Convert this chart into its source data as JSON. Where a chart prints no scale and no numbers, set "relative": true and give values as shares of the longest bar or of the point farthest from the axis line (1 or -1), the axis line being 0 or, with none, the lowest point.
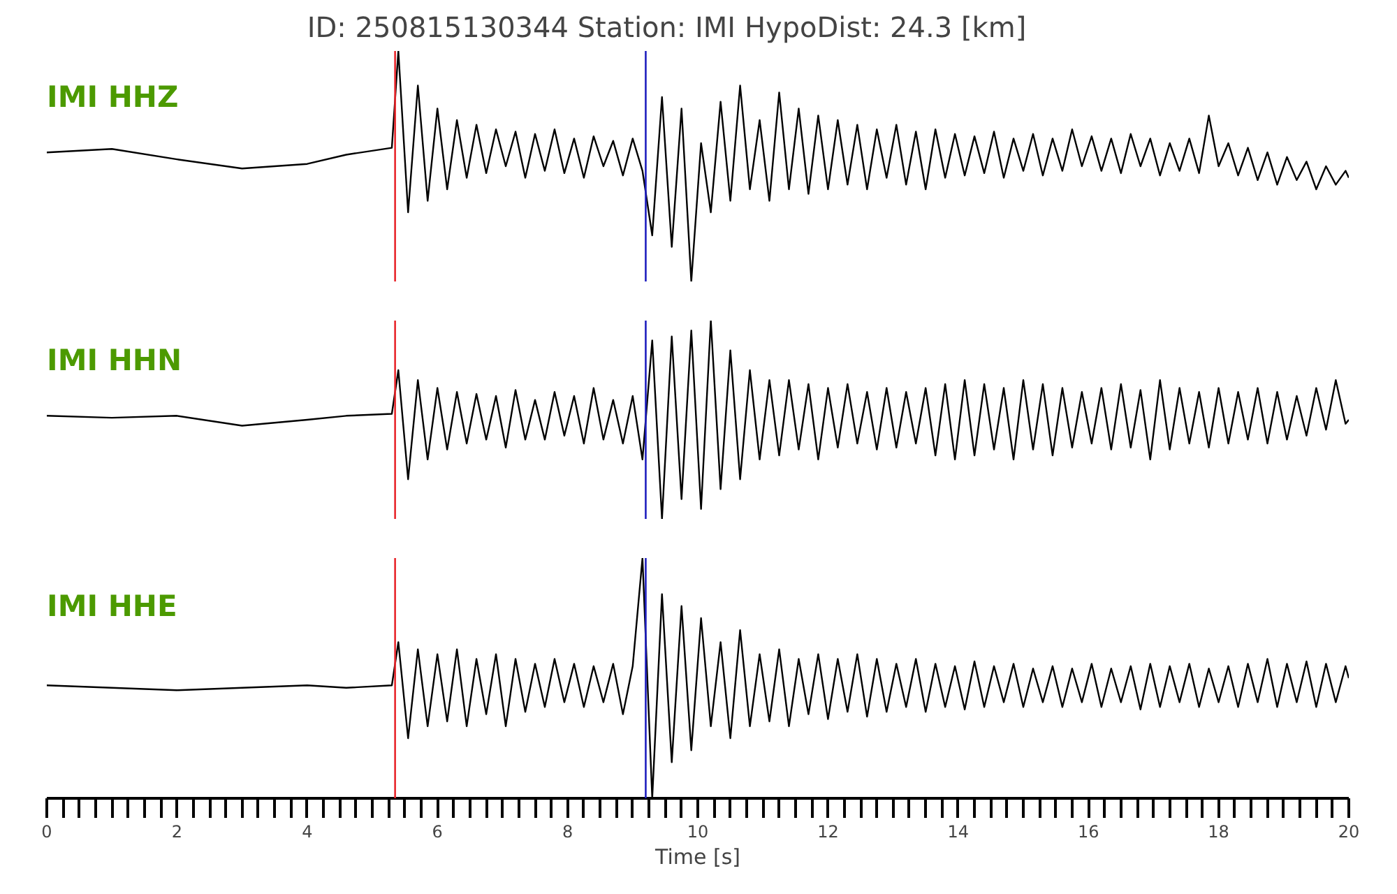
{
  "chart_data": [
    {
      "type": "line",
      "title": "ID: 250815130344   Station: IMI   HypoDist:    24.3 [km]",
      "relative": true,
      "xlim": [
        0,
        20
      ],
      "tick_labels": false,
      "x": [
        0,
        1,
        2,
        3,
        4,
        4.6,
        5.3,
        5.4,
        5.55,
        5.7,
        5.85,
        6,
        6.15,
        6.3,
        6.45,
        6.6,
        6.75,
        6.9,
        7.05,
        7.2,
        7.35,
        7.5,
        7.65,
        7.8,
        7.95,
        8.1,
        8.25,
        8.4,
        8.55,
        8.7,
        8.85,
        9,
        9.15,
        9.3,
        9.45,
        9.6,
        9.75,
        9.9,
        10.05,
        10.2,
        10.35,
        10.5,
        10.65,
        10.8,
        10.95,
        11.1,
        11.25,
        11.4,
        11.55,
        11.7,
        11.85,
        12,
        12.15,
        12.3,
        12.45,
        12.6,
        12.75,
        12.9,
        13.05,
        13.2,
        13.35,
        13.5,
        13.65,
        13.8,
        13.95,
        14.1,
        14.25,
        14.4,
        14.55,
        14.7,
        14.85,
        15,
        15.15,
        15.3,
        15.45,
        15.6,
        15.75,
        15.9,
        16.05,
        16.2,
        16.35,
        16.5,
        16.65,
        16.8,
        16.95,
        17.1,
        17.25,
        17.4,
        17.55,
        17.7,
        17.85,
        18,
        18.15,
        18.3,
        18.45,
        18.6,
        18.75,
        18.9,
        19.05,
        19.2,
        19.35,
        19.5,
        19.65,
        19.8,
        19.95,
        20
      ],
      "series": [
        {
          "name": "IMI HHZ",
          "color": "#000000",
          "values": [
            0.56,
            0.575,
            0.53,
            0.49,
            0.51,
            0.55,
            0.58,
            1.0,
            0.3,
            0.85,
            0.35,
            0.75,
            0.4,
            0.7,
            0.45,
            0.68,
            0.47,
            0.66,
            0.5,
            0.65,
            0.45,
            0.64,
            0.48,
            0.66,
            0.47,
            0.62,
            0.45,
            0.63,
            0.5,
            0.61,
            0.46,
            0.62,
            0.48,
            0.2,
            0.8,
            0.15,
            0.75,
            0.0,
            0.6,
            0.3,
            0.78,
            0.35,
            0.85,
            0.4,
            0.7,
            0.35,
            0.82,
            0.4,
            0.75,
            0.38,
            0.72,
            0.4,
            0.7,
            0.42,
            0.68,
            0.4,
            0.66,
            0.45,
            0.68,
            0.42,
            0.65,
            0.4,
            0.66,
            0.45,
            0.64,
            0.46,
            0.63,
            0.47,
            0.65,
            0.45,
            0.62,
            0.48,
            0.64,
            0.46,
            0.62,
            0.48,
            0.66,
            0.5,
            0.63,
            0.48,
            0.62,
            0.47,
            0.64,
            0.5,
            0.62,
            0.46,
            0.6,
            0.48,
            0.62,
            0.47,
            0.72,
            0.5,
            0.6,
            0.46,
            0.58,
            0.44,
            0.56,
            0.42,
            0.54,
            0.44,
            0.52,
            0.4,
            0.5,
            0.42,
            0.48,
            0.45
          ]
        }
      ],
      "ref_lines": [
        {
          "axis": "x",
          "value": 5.35,
          "color": "#e8262b"
        },
        {
          "axis": "x",
          "value": 9.2,
          "color": "#1f1fbf"
        }
      ]
    },
    {
      "type": "line",
      "relative": true,
      "xlim": [
        0,
        20
      ],
      "tick_labels": false,
      "x": [
        0,
        1,
        2,
        3,
        4,
        4.6,
        5.3,
        5.4,
        5.55,
        5.7,
        5.85,
        6,
        6.15,
        6.3,
        6.45,
        6.6,
        6.75,
        6.9,
        7.05,
        7.2,
        7.35,
        7.5,
        7.65,
        7.8,
        7.95,
        8.1,
        8.25,
        8.4,
        8.55,
        8.7,
        8.85,
        9,
        9.15,
        9.3,
        9.45,
        9.6,
        9.75,
        9.9,
        10.05,
        10.2,
        10.35,
        10.5,
        10.65,
        10.8,
        10.95,
        11.1,
        11.25,
        11.4,
        11.55,
        11.7,
        11.85,
        12,
        12.15,
        12.3,
        12.45,
        12.6,
        12.75,
        12.9,
        13.05,
        13.2,
        13.35,
        13.5,
        13.65,
        13.8,
        13.95,
        14.1,
        14.25,
        14.4,
        14.55,
        14.7,
        14.85,
        15,
        15.15,
        15.3,
        15.45,
        15.6,
        15.75,
        15.9,
        16.05,
        16.2,
        16.35,
        16.5,
        16.65,
        16.8,
        16.95,
        17.1,
        17.25,
        17.4,
        17.55,
        17.7,
        17.85,
        18,
        18.15,
        18.3,
        18.45,
        18.6,
        18.75,
        18.9,
        19.05,
        19.2,
        19.35,
        19.5,
        19.65,
        19.8,
        19.95,
        20
      ],
      "series": [
        {
          "name": "IMI HHN",
          "color": "#000000",
          "values": [
            0.52,
            0.51,
            0.52,
            0.47,
            0.5,
            0.52,
            0.53,
            0.75,
            0.2,
            0.7,
            0.3,
            0.66,
            0.35,
            0.64,
            0.38,
            0.63,
            0.4,
            0.62,
            0.36,
            0.65,
            0.4,
            0.6,
            0.4,
            0.64,
            0.42,
            0.62,
            0.38,
            0.66,
            0.4,
            0.6,
            0.38,
            0.62,
            0.3,
            0.9,
            0.0,
            0.92,
            0.1,
            0.95,
            0.05,
            1.0,
            0.15,
            0.85,
            0.2,
            0.75,
            0.3,
            0.7,
            0.32,
            0.7,
            0.35,
            0.68,
            0.3,
            0.66,
            0.36,
            0.68,
            0.38,
            0.64,
            0.35,
            0.66,
            0.36,
            0.64,
            0.38,
            0.66,
            0.32,
            0.68,
            0.3,
            0.7,
            0.32,
            0.68,
            0.35,
            0.66,
            0.3,
            0.7,
            0.35,
            0.68,
            0.32,
            0.66,
            0.36,
            0.64,
            0.38,
            0.66,
            0.35,
            0.68,
            0.36,
            0.65,
            0.3,
            0.7,
            0.35,
            0.66,
            0.38,
            0.64,
            0.36,
            0.66,
            0.38,
            0.64,
            0.4,
            0.66,
            0.38,
            0.64,
            0.4,
            0.62,
            0.42,
            0.66,
            0.45,
            0.7,
            0.48,
            0.5
          ]
        }
      ],
      "ref_lines": [
        {
          "axis": "x",
          "value": 5.35,
          "color": "#e8262b"
        },
        {
          "axis": "x",
          "value": 9.2,
          "color": "#1f1fbf"
        }
      ]
    },
    {
      "type": "line",
      "relative": true,
      "xlim": [
        0,
        20
      ],
      "tick_labels": "x",
      "xlabel": "Time [s]",
      "xticks": [
        0,
        {
          "value": 0.25,
          "label": null
        },
        {
          "value": 0.5,
          "label": null
        },
        {
          "value": 0.75,
          "label": null
        },
        {
          "value": 1,
          "label": null
        },
        {
          "value": 1.25,
          "label": null
        },
        {
          "value": 1.5,
          "label": null
        },
        {
          "value": 1.75,
          "label": null
        },
        2,
        {
          "value": 2.25,
          "label": null
        },
        {
          "value": 2.5,
          "label": null
        },
        {
          "value": 2.75,
          "label": null
        },
        {
          "value": 3,
          "label": null
        },
        {
          "value": 3.25,
          "label": null
        },
        {
          "value": 3.5,
          "label": null
        },
        {
          "value": 3.75,
          "label": null
        },
        4,
        {
          "value": 4.25,
          "label": null
        },
        {
          "value": 4.5,
          "label": null
        },
        {
          "value": 4.75,
          "label": null
        },
        {
          "value": 5,
          "label": null
        },
        {
          "value": 5.25,
          "label": null
        },
        {
          "value": 5.5,
          "label": null
        },
        {
          "value": 5.75,
          "label": null
        },
        6,
        {
          "value": 6.25,
          "label": null
        },
        {
          "value": 6.5,
          "label": null
        },
        {
          "value": 6.75,
          "label": null
        },
        {
          "value": 7,
          "label": null
        },
        {
          "value": 7.25,
          "label": null
        },
        {
          "value": 7.5,
          "label": null
        },
        {
          "value": 7.75,
          "label": null
        },
        8,
        {
          "value": 8.25,
          "label": null
        },
        {
          "value": 8.5,
          "label": null
        },
        {
          "value": 8.75,
          "label": null
        },
        {
          "value": 9,
          "label": null
        },
        {
          "value": 9.25,
          "label": null
        },
        {
          "value": 9.5,
          "label": null
        },
        {
          "value": 9.75,
          "label": null
        },
        10,
        {
          "value": 10.25,
          "label": null
        },
        {
          "value": 10.5,
          "label": null
        },
        {
          "value": 10.75,
          "label": null
        },
        {
          "value": 11,
          "label": null
        },
        {
          "value": 11.25,
          "label": null
        },
        {
          "value": 11.5,
          "label": null
        },
        {
          "value": 11.75,
          "label": null
        },
        12,
        {
          "value": 12.25,
          "label": null
        },
        {
          "value": 12.5,
          "label": null
        },
        {
          "value": 12.75,
          "label": null
        },
        {
          "value": 13,
          "label": null
        },
        {
          "value": 13.25,
          "label": null
        },
        {
          "value": 13.5,
          "label": null
        },
        {
          "value": 13.75,
          "label": null
        },
        14,
        {
          "value": 14.25,
          "label": null
        },
        {
          "value": 14.5,
          "label": null
        },
        {
          "value": 14.75,
          "label": null
        },
        {
          "value": 15,
          "label": null
        },
        {
          "value": 15.25,
          "label": null
        },
        {
          "value": 15.5,
          "label": null
        },
        {
          "value": 15.75,
          "label": null
        },
        16,
        {
          "value": 16.25,
          "label": null
        },
        {
          "value": 16.5,
          "label": null
        },
        {
          "value": 16.75,
          "label": null
        },
        {
          "value": 17,
          "label": null
        },
        {
          "value": 17.25,
          "label": null
        },
        {
          "value": 17.5,
          "label": null
        },
        {
          "value": 17.75,
          "label": null
        },
        18,
        {
          "value": 18.25,
          "label": null
        },
        {
          "value": 18.5,
          "label": null
        },
        {
          "value": 18.75,
          "label": null
        },
        {
          "value": 19,
          "label": null
        },
        {
          "value": 19.25,
          "label": null
        },
        {
          "value": 19.5,
          "label": null
        },
        {
          "value": 19.75,
          "label": null
        },
        20
      ],
      "x": [
        0,
        1,
        2,
        3,
        4,
        4.6,
        5.3,
        5.4,
        5.55,
        5.7,
        5.85,
        6,
        6.15,
        6.3,
        6.45,
        6.6,
        6.75,
        6.9,
        7.05,
        7.2,
        7.35,
        7.5,
        7.65,
        7.8,
        7.95,
        8.1,
        8.25,
        8.4,
        8.55,
        8.7,
        8.85,
        9,
        9.15,
        9.3,
        9.45,
        9.6,
        9.75,
        9.9,
        10.05,
        10.2,
        10.35,
        10.5,
        10.65,
        10.8,
        10.95,
        11.1,
        11.25,
        11.4,
        11.55,
        11.7,
        11.85,
        12,
        12.15,
        12.3,
        12.45,
        12.6,
        12.75,
        12.9,
        13.05,
        13.2,
        13.35,
        13.5,
        13.65,
        13.8,
        13.95,
        14.1,
        14.25,
        14.4,
        14.55,
        14.7,
        14.85,
        15,
        15.15,
        15.3,
        15.45,
        15.6,
        15.75,
        15.9,
        16.05,
        16.2,
        16.35,
        16.5,
        16.65,
        16.8,
        16.95,
        17.1,
        17.25,
        17.4,
        17.55,
        17.7,
        17.85,
        18,
        18.15,
        18.3,
        18.45,
        18.6,
        18.75,
        18.9,
        19.05,
        19.2,
        19.35,
        19.5,
        19.65,
        19.8,
        19.95,
        20
      ],
      "series": [
        {
          "name": "IMI HHE",
          "color": "#000000",
          "values": [
            0.47,
            0.46,
            0.45,
            0.46,
            0.47,
            0.46,
            0.47,
            0.65,
            0.25,
            0.62,
            0.3,
            0.6,
            0.32,
            0.62,
            0.3,
            0.58,
            0.35,
            0.6,
            0.3,
            0.58,
            0.36,
            0.56,
            0.38,
            0.58,
            0.4,
            0.56,
            0.38,
            0.55,
            0.4,
            0.56,
            0.35,
            0.55,
            1.0,
            0.0,
            0.85,
            0.15,
            0.8,
            0.2,
            0.75,
            0.3,
            0.65,
            0.25,
            0.7,
            0.3,
            0.6,
            0.32,
            0.62,
            0.3,
            0.58,
            0.35,
            0.6,
            0.33,
            0.58,
            0.36,
            0.6,
            0.34,
            0.58,
            0.36,
            0.56,
            0.38,
            0.58,
            0.36,
            0.56,
            0.38,
            0.55,
            0.37,
            0.57,
            0.38,
            0.55,
            0.4,
            0.56,
            0.38,
            0.54,
            0.4,
            0.55,
            0.38,
            0.54,
            0.4,
            0.56,
            0.38,
            0.54,
            0.4,
            0.55,
            0.37,
            0.56,
            0.38,
            0.55,
            0.4,
            0.56,
            0.38,
            0.54,
            0.4,
            0.55,
            0.38,
            0.56,
            0.4,
            0.58,
            0.38,
            0.56,
            0.4,
            0.57,
            0.38,
            0.56,
            0.4,
            0.55,
            0.5
          ]
        }
      ],
      "ref_lines": [
        {
          "axis": "x",
          "value": 5.35,
          "color": "#e8262b"
        },
        {
          "axis": "x",
          "value": 9.2,
          "color": "#1f1fbf"
        }
      ]
    }
  ]
}
